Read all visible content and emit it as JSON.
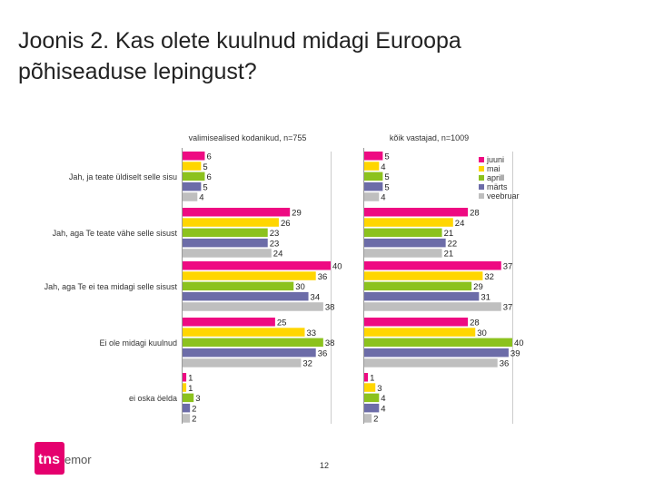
{
  "slide": {
    "title_line1": "Joonis 2. Kas olete kuulnud midagi Euroopa",
    "title_line2": "põhiseaduse lepingust?",
    "page_number": "12"
  },
  "logo": {
    "text_mark": "tns",
    "text_brand": "emor",
    "color": "#e5006e"
  },
  "chart_data": {
    "type": "bar",
    "orientation": "horizontal",
    "categories": [
      "Jah, ja teate üldiselt selle sisu",
      "Jah, aga Te teate vähe selle sisust",
      "Jah, aga Te ei tea midagi selle sisust",
      "Ei ole midagi kuulnud",
      "ei oska öelda"
    ],
    "panels": [
      {
        "title": "valimisealised kodanikud, n=755",
        "series": [
          {
            "name": "juuni",
            "color": "#ee0a82",
            "values": [
              6,
              29,
              40,
              25,
              1
            ]
          },
          {
            "name": "mai",
            "color": "#ffd600",
            "values": [
              5,
              26,
              36,
              33,
              1
            ]
          },
          {
            "name": "aprill",
            "color": "#8cc21e",
            "values": [
              6,
              23,
              30,
              38,
              3
            ]
          },
          {
            "name": "märts",
            "color": "#6c6ca8",
            "values": [
              5,
              23,
              34,
              36,
              2
            ]
          },
          {
            "name": "veebruar",
            "color": "#bfbfbf",
            "values": [
              4,
              24,
              38,
              32,
              2
            ]
          }
        ]
      },
      {
        "title": "kõik vastajad, n=1009",
        "series": [
          {
            "name": "juuni",
            "color": "#ee0a82",
            "values": [
              5,
              28,
              37,
              28,
              1
            ]
          },
          {
            "name": "mai",
            "color": "#ffd600",
            "values": [
              4,
              24,
              32,
              30,
              3
            ]
          },
          {
            "name": "aprill",
            "color": "#8cc21e",
            "values": [
              5,
              21,
              29,
              40,
              4
            ]
          },
          {
            "name": "märts",
            "color": "#6c6ca8",
            "values": [
              5,
              22,
              31,
              39,
              4
            ]
          },
          {
            "name": "veebruar",
            "color": "#bfbfbf",
            "values": [
              4,
              21,
              37,
              36,
              2
            ]
          }
        ]
      }
    ],
    "legend": [
      "juuni",
      "mai",
      "aprill",
      "märts",
      "veebruar"
    ],
    "legend_position": "top-right",
    "xlim": [
      0,
      40
    ],
    "grid": false
  }
}
